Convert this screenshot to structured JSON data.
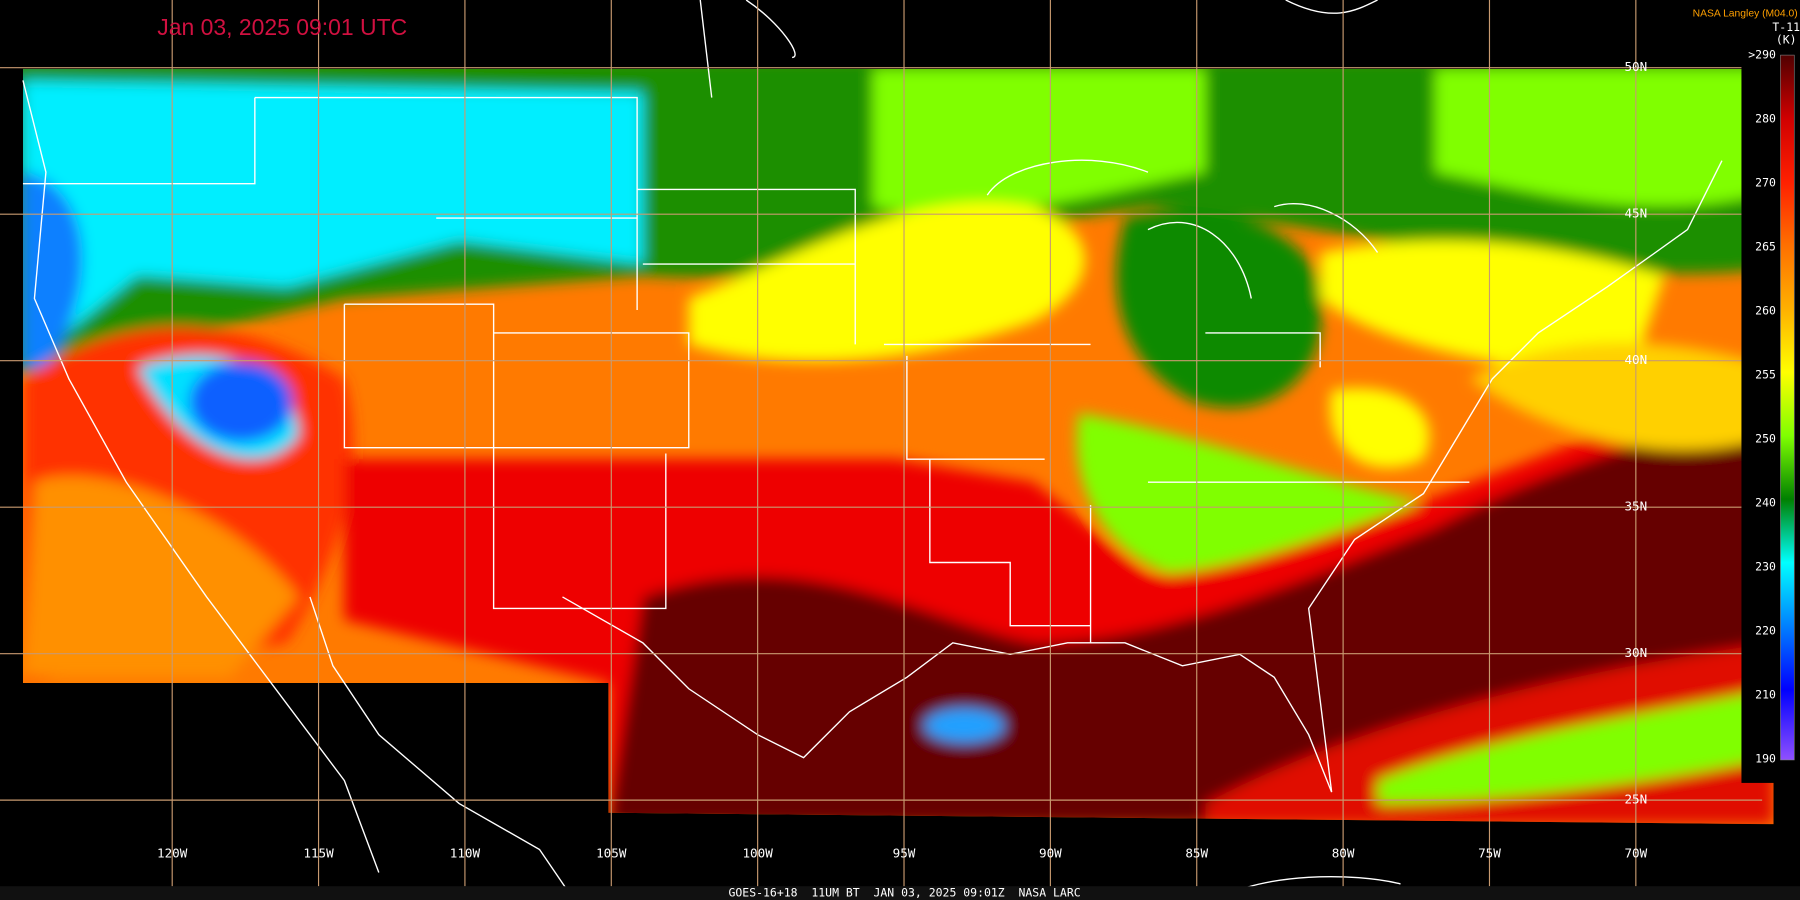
{
  "header": {
    "timestamp": "Jan 03, 2025 09:01 UTC",
    "credit": "NASA Langley (M04.0)"
  },
  "map": {
    "longitude_labels": [
      "120W",
      "115W",
      "110W",
      "105W",
      "100W",
      "95W",
      "90W",
      "85W",
      "80W",
      "75W",
      "70W"
    ],
    "latitude_labels": [
      "50N",
      "45N",
      "40N",
      "35N",
      "30N",
      "25N"
    ]
  },
  "legend": {
    "title": "T-11",
    "unit": "(K)",
    "labels": [
      ">290",
      "280",
      "270",
      "265",
      "260",
      "255",
      "250",
      "240",
      "230",
      "220",
      "210",
      "190"
    ]
  },
  "footer": {
    "caption": "GOES-16+18  11UM BT  JAN 03, 2025 09:01Z  NASA LARC"
  }
}
